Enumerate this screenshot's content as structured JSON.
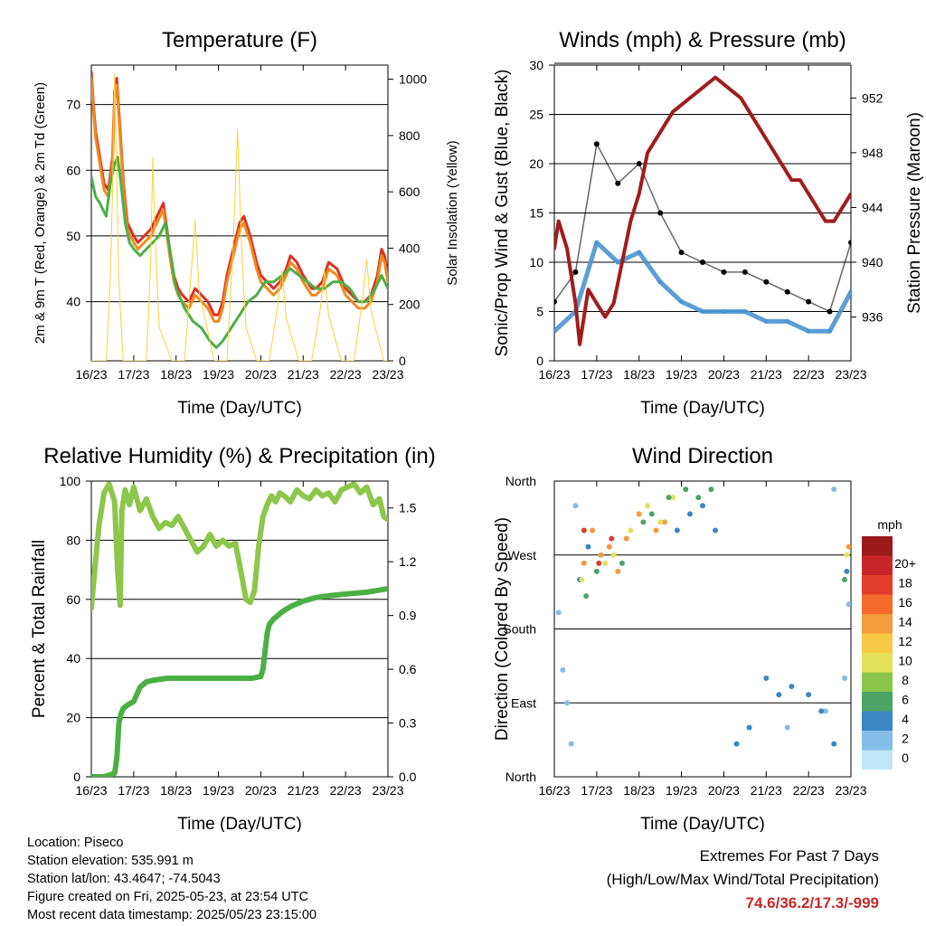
{
  "chart_data": [
    {
      "type": "line",
      "title": "Temperature (F)",
      "xlabel": "Time (Day/UTC)",
      "ylabel": "2m & 9m T (Red, Orange) & 2m Td (Green)",
      "y2label": "Solar Insolation (Yellow)",
      "x_ticks": [
        "16/23",
        "17/23",
        "18/23",
        "19/23",
        "20/23",
        "21/23",
        "22/23",
        "23/23"
      ],
      "ylim": [
        31,
        76
      ],
      "y_ticks": [
        40,
        50,
        60,
        70
      ],
      "y2lim": [
        0,
        1050
      ],
      "y2_ticks": [
        0,
        200,
        400,
        600,
        800,
        1000
      ],
      "grid": true,
      "series": [
        {
          "color": "#d93226",
          "x": [
            0,
            0.05,
            0.1,
            0.2,
            0.3,
            0.4,
            0.5,
            0.55,
            0.6,
            0.68,
            0.76,
            0.85,
            1.0,
            1.1,
            1.25,
            1.4,
            1.55,
            1.7,
            1.85,
            1.95,
            2.05,
            2.15,
            2.3,
            2.45,
            2.6,
            2.75,
            2.9,
            3.0,
            3.1,
            3.2,
            3.35,
            3.5,
            3.6,
            3.75,
            3.9,
            4.0,
            4.15,
            4.3,
            4.45,
            4.6,
            4.7,
            4.85,
            5.0,
            5.1,
            5.2,
            5.3,
            5.45,
            5.6,
            5.8,
            6.0,
            6.15,
            6.3,
            6.45,
            6.6,
            6.75,
            6.85,
            6.92,
            7.0
          ],
          "values": [
            75,
            70,
            66,
            62,
            58,
            57,
            62,
            72,
            74,
            66,
            58,
            52,
            50,
            49,
            50,
            51,
            53,
            55,
            48,
            44,
            42,
            41,
            40,
            42,
            41,
            40,
            38,
            38,
            40,
            44,
            48,
            52,
            53,
            50,
            46,
            44,
            43,
            42,
            43,
            45,
            47,
            46,
            44,
            43,
            42,
            42,
            43,
            46,
            45,
            42,
            41,
            40,
            40,
            41,
            44,
            48,
            47,
            44
          ]
        },
        {
          "color": "#f08a1e",
          "x": [
            0,
            0.05,
            0.1,
            0.2,
            0.3,
            0.4,
            0.5,
            0.55,
            0.6,
            0.68,
            0.76,
            0.85,
            1.0,
            1.1,
            1.25,
            1.4,
            1.55,
            1.7,
            1.85,
            1.95,
            2.05,
            2.15,
            2.3,
            2.45,
            2.6,
            2.75,
            2.9,
            3.0,
            3.1,
            3.2,
            3.35,
            3.5,
            3.6,
            3.75,
            3.9,
            4.0,
            4.15,
            4.3,
            4.45,
            4.6,
            4.7,
            4.85,
            5.0,
            5.1,
            5.2,
            5.3,
            5.45,
            5.6,
            5.8,
            6.0,
            6.15,
            6.3,
            6.45,
            6.6,
            6.75,
            6.85,
            6.92,
            7.0
          ],
          "values": [
            74,
            69,
            65,
            61,
            57,
            56,
            61,
            71,
            73,
            65,
            57,
            51,
            49,
            48,
            49,
            50,
            52,
            54,
            47,
            43,
            41,
            40,
            39,
            41,
            40,
            39,
            37,
            37,
            39,
            43,
            47,
            51,
            52,
            49,
            45,
            43,
            42,
            41,
            42,
            44,
            46,
            45,
            43,
            42,
            41,
            41,
            42,
            45,
            44,
            41,
            40,
            39,
            39,
            40,
            43,
            47,
            46,
            43
          ]
        },
        {
          "color": "#4caf46",
          "x": [
            0,
            0.1,
            0.2,
            0.35,
            0.45,
            0.55,
            0.62,
            0.7,
            0.8,
            0.9,
            1.0,
            1.15,
            1.3,
            1.45,
            1.6,
            1.75,
            1.85,
            2.0,
            2.2,
            2.4,
            2.6,
            2.8,
            2.95,
            3.1,
            3.3,
            3.5,
            3.7,
            3.9,
            4.1,
            4.3,
            4.5,
            4.7,
            4.9,
            5.1,
            5.3,
            5.5,
            5.7,
            5.9,
            6.1,
            6.3,
            6.5,
            6.7,
            6.85,
            7.0
          ],
          "values": [
            59,
            56,
            55,
            53,
            58,
            61,
            62,
            58,
            52,
            49,
            48,
            47,
            48,
            49,
            50,
            52,
            48,
            42,
            39,
            37,
            36,
            34,
            33,
            34,
            36,
            38,
            40,
            41,
            43,
            43,
            44,
            45,
            44,
            43,
            42,
            42,
            43,
            43,
            42,
            40,
            40,
            42,
            44,
            42
          ]
        },
        {
          "color": "#f5d33b",
          "x": [
            0,
            0.35,
            0.45,
            0.5,
            0.55,
            0.6,
            0.65,
            0.75,
            1.0,
            1.3,
            1.4,
            1.45,
            1.5,
            1.6,
            1.9,
            2.2,
            2.35,
            2.45,
            2.55,
            2.9,
            3.2,
            3.35,
            3.45,
            3.55,
            3.65,
            3.9,
            4.2,
            4.4,
            4.5,
            4.6,
            4.9,
            5.2,
            5.4,
            5.5,
            5.6,
            5.9,
            6.2,
            6.4,
            6.5,
            6.6,
            6.9,
            7.0
          ],
          "values": [
            0,
            0,
            300,
            600,
            1020,
            640,
            280,
            0,
            0,
            0,
            350,
            720,
            460,
            120,
            0,
            0,
            300,
            500,
            240,
            0,
            0,
            420,
            820,
            380,
            120,
            0,
            0,
            200,
            320,
            150,
            0,
            0,
            180,
            320,
            160,
            0,
            0,
            220,
            360,
            180,
            0,
            0
          ]
        }
      ]
    },
    {
      "type": "scatter",
      "title": "Winds (mph) & Pressure (mb)",
      "xlabel": "Time (Day/UTC)",
      "ylabel": "Sonic/Prop Wind & Gust (Blue, Black)",
      "y2label": "Station Pressure (Maroon)",
      "x_ticks": [
        "16/23",
        "17/23",
        "18/23",
        "19/23",
        "20/23",
        "21/23",
        "22/23",
        "23/23"
      ],
      "ylim": [
        0,
        30
      ],
      "y_ticks": [
        0,
        5,
        10,
        15,
        20,
        25,
        30
      ],
      "y2lim": [
        932.8,
        954.4
      ],
      "y2_ticks": [
        936,
        940,
        944,
        948,
        952
      ],
      "grid": true,
      "series": [
        {
          "color": "#000000",
          "x": [
            0,
            0.5,
            1.0,
            1.5,
            2.0,
            2.5,
            3.0,
            3.5,
            4.0,
            4.5,
            5.0,
            5.5,
            6.0,
            6.5,
            7.0
          ],
          "values": [
            6,
            9,
            22,
            18,
            20,
            15,
            11,
            10,
            9,
            9,
            8,
            7,
            6,
            5,
            12
          ]
        },
        {
          "color": "#4a94d1",
          "x": [
            0,
            0.5,
            1.0,
            1.5,
            2.0,
            2.5,
            3.0,
            3.5,
            4.0,
            4.5,
            5.0,
            5.5,
            6.0,
            6.5,
            7.0
          ],
          "values": [
            3,
            5,
            12,
            10,
            11,
            8,
            6,
            5,
            5,
            5,
            4,
            4,
            3,
            3,
            7
          ]
        },
        {
          "color": "#a01c1c",
          "x": [
            0,
            0.1,
            0.2,
            0.3,
            0.4,
            0.5,
            0.6,
            0.7,
            0.8,
            1.0,
            1.2,
            1.4,
            1.6,
            1.8,
            2.0,
            2.2,
            2.4,
            2.6,
            2.8,
            3.0,
            3.2,
            3.4,
            3.6,
            3.8,
            4.0,
            4.2,
            4.4,
            4.6,
            4.8,
            5.0,
            5.2,
            5.4,
            5.6,
            5.8,
            6.0,
            6.2,
            6.4,
            6.6,
            6.8,
            7.0
          ],
          "values": [
            941,
            943,
            942,
            941,
            939,
            937,
            934,
            936,
            938,
            937,
            936,
            937,
            940,
            943,
            945,
            948,
            949,
            950,
            951,
            951.5,
            952,
            952.5,
            953,
            953.5,
            953,
            952.5,
            952,
            951,
            950,
            949,
            948,
            947,
            946,
            946,
            945,
            944,
            943,
            943,
            944,
            945
          ]
        }
      ]
    },
    {
      "type": "scatter",
      "title": "Relative Humidity (%) & Precipitation (in)",
      "xlabel": "Time (Day/UTC)",
      "ylabel": "Percent & Total Rainfall",
      "x_ticks": [
        "16/23",
        "17/23",
        "18/23",
        "19/23",
        "20/23",
        "21/23",
        "22/23",
        "23/23"
      ],
      "ylim": [
        0,
        100
      ],
      "y_ticks": [
        0,
        20,
        40,
        60,
        80,
        100
      ],
      "y2lim": [
        0,
        1.65
      ],
      "y2_ticks": [
        0.0,
        0.3,
        0.6,
        0.9,
        1.2,
        1.5
      ],
      "grid": true,
      "series": [
        {
          "color": "#8cc64a",
          "x": [
            0,
            0.08,
            0.18,
            0.3,
            0.42,
            0.55,
            0.62,
            0.68,
            0.72,
            0.8,
            0.9,
            1.0,
            1.15,
            1.3,
            1.45,
            1.6,
            1.75,
            1.9,
            2.05,
            2.2,
            2.35,
            2.5,
            2.65,
            2.8,
            2.95,
            3.1,
            3.25,
            3.4,
            3.55,
            3.65,
            3.75,
            3.85,
            3.95,
            4.05,
            4.15,
            4.25,
            4.35,
            4.45,
            4.55,
            4.7,
            4.85,
            5.0,
            5.15,
            5.3,
            5.45,
            5.6,
            5.75,
            5.9,
            6.05,
            6.2,
            6.35,
            6.5,
            6.65,
            6.8,
            6.9,
            7.0
          ],
          "values": [
            57,
            70,
            85,
            96,
            99,
            93,
            70,
            58,
            90,
            97,
            92,
            98,
            90,
            94,
            88,
            84,
            86,
            85,
            88,
            84,
            80,
            76,
            78,
            82,
            78,
            80,
            78,
            79,
            68,
            60,
            59,
            63,
            78,
            88,
            92,
            95,
            93,
            96,
            95,
            93,
            97,
            95,
            94,
            97,
            95,
            96,
            93,
            97,
            98,
            99,
            96,
            98,
            92,
            94,
            88,
            87
          ]
        },
        {
          "color": "#4caf46",
          "x": [
            0,
            0.3,
            0.55,
            0.6,
            0.62,
            0.65,
            0.7,
            0.75,
            0.85,
            1.0,
            1.15,
            1.3,
            1.5,
            1.8,
            2.0,
            2.5,
            3.0,
            3.5,
            3.8,
            4.0,
            4.05,
            4.1,
            4.15,
            4.2,
            4.3,
            4.5,
            4.7,
            5.0,
            5.3,
            5.6,
            6.0,
            6.5,
            7.0
          ],
          "values": [
            0,
            0,
            0.02,
            0.1,
            0.17,
            0.3,
            0.35,
            0.38,
            0.4,
            0.42,
            0.5,
            0.53,
            0.54,
            0.55,
            0.55,
            0.55,
            0.55,
            0.55,
            0.55,
            0.56,
            0.6,
            0.7,
            0.8,
            0.85,
            0.88,
            0.92,
            0.95,
            0.98,
            1.0,
            1.01,
            1.02,
            1.03,
            1.05
          ]
        }
      ]
    },
    {
      "type": "scatter",
      "title": "Wind Direction",
      "xlabel": "Time (Day/UTC)",
      "ylabel": "Direction (Colored By Speed)",
      "x_ticks": [
        "16/23",
        "17/23",
        "18/23",
        "19/23",
        "20/23",
        "21/23",
        "22/23",
        "23/23"
      ],
      "y_ticks": [
        "North",
        "East",
        "South",
        "West",
        "North"
      ],
      "ylim": [
        0,
        360
      ],
      "grid": true,
      "legend": {
        "title": "mph",
        "placement": "right",
        "labels": [
          "20+",
          "18",
          "16",
          "14",
          "12",
          "10",
          "8",
          "6",
          "4",
          "2",
          "0"
        ],
        "colors": [
          "#9c1a1a",
          "#c8252a",
          "#e33d2d",
          "#f46a2b",
          "#f59b3a",
          "#f6c843",
          "#e3e25a",
          "#8cc64a",
          "#4ca366",
          "#3b87c4",
          "#83bde8",
          "#bfe6f7"
        ]
      },
      "series": [
        {
          "color": "#83bde8",
          "x": [
            0.1,
            0.2,
            0.3,
            0.4,
            0.5,
            5.5,
            6.4,
            6.6,
            6.85,
            6.95
          ],
          "values": [
            200,
            130,
            90,
            40,
            330,
            60,
            80,
            350,
            120,
            210
          ]
        },
        {
          "color": "#3b87c4",
          "x": [
            0.6,
            0.8,
            2.9,
            3.2,
            3.5,
            3.8,
            4.3,
            4.6,
            5.0,
            5.3,
            5.6,
            6.0,
            6.3,
            6.6,
            6.9
          ],
          "values": [
            240,
            280,
            300,
            320,
            330,
            300,
            40,
            60,
            120,
            100,
            110,
            100,
            80,
            40,
            250
          ]
        },
        {
          "color": "#f59b3a",
          "x": [
            0.7,
            0.9,
            1.1,
            1.3,
            1.5,
            1.7,
            2.0,
            2.4,
            2.6,
            6.95
          ],
          "values": [
            260,
            300,
            270,
            280,
            250,
            290,
            320,
            300,
            310,
            280
          ]
        },
        {
          "color": "#e3e25a",
          "x": [
            0.65,
            1.2,
            1.4,
            1.8,
            2.2,
            2.5,
            2.8,
            6.9
          ],
          "values": [
            240,
            260,
            270,
            300,
            330,
            310,
            340,
            270
          ]
        },
        {
          "color": "#4ca366",
          "x": [
            0.75,
            1.0,
            1.6,
            2.1,
            2.3,
            2.7,
            3.1,
            3.4,
            3.7,
            6.85
          ],
          "values": [
            220,
            250,
            260,
            310,
            320,
            340,
            350,
            340,
            350,
            240
          ]
        },
        {
          "color": "#e33d2d",
          "x": [
            0.7,
            1.05,
            1.35
          ],
          "values": [
            300,
            260,
            290
          ]
        }
      ]
    }
  ],
  "info": {
    "location": "Location: Piseco",
    "elevation": "Station elevation: 535.991 m",
    "latlon": "Station lat/lon: 43.4647; -74.5043",
    "created": "Figure created on Fri, 2025-05-23, at 23:54 UTC",
    "recent": "Most recent data timestamp: 2025/05/23 23:15:00"
  },
  "extremes": {
    "title": "Extremes For Past 7 Days",
    "subtitle": "(High/Low/Max Wind/Total Precipitation)",
    "values": "74.6/36.2/17.3/-999"
  }
}
